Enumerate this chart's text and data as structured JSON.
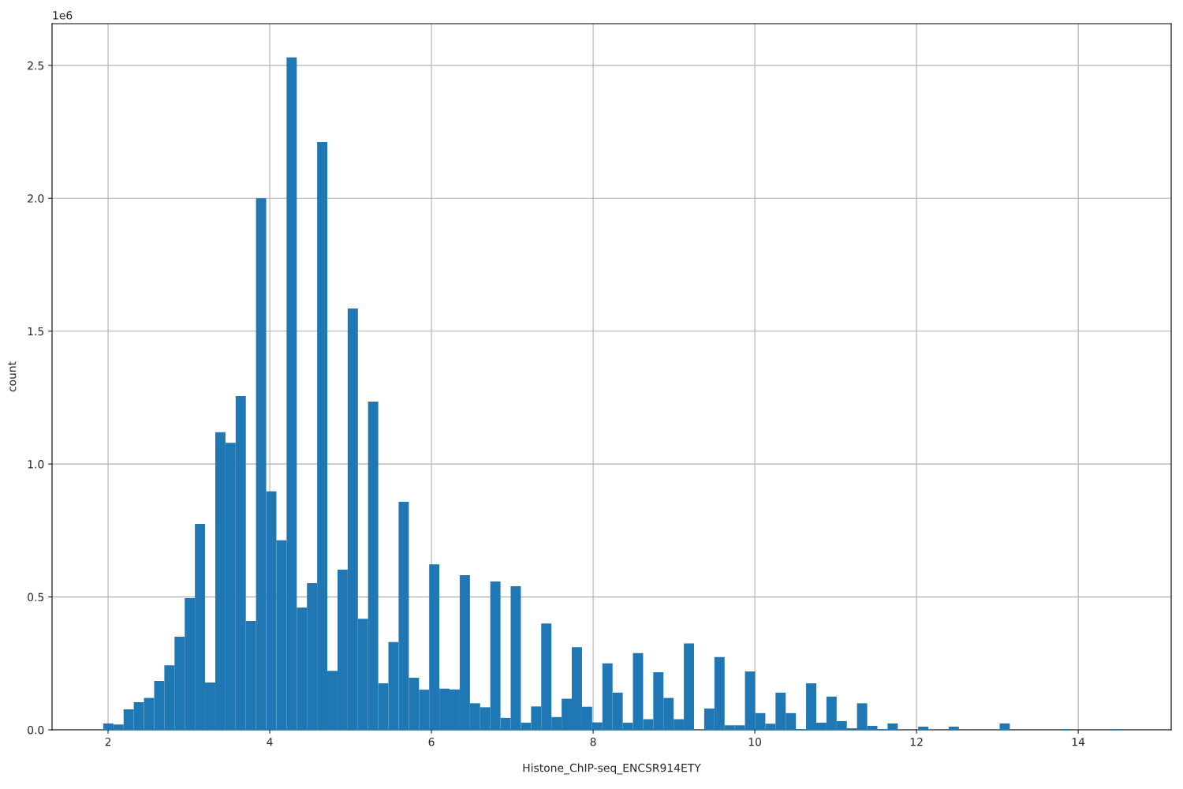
{
  "chart_data": {
    "type": "histogram",
    "xlabel": "Histone_ChIP-seq_ENCSR914ETY",
    "ylabel": "count",
    "color": "#1f77b4",
    "bins": [
      1.94,
      2.066,
      2.192,
      2.318,
      2.444,
      2.57,
      2.696,
      2.822,
      2.948,
      3.074,
      3.2,
      3.326,
      3.452,
      3.578,
      3.704,
      3.83,
      3.956,
      4.082,
      4.208,
      4.334,
      4.46,
      4.586,
      4.712,
      4.838,
      4.964,
      5.09,
      5.216,
      5.342,
      5.468,
      5.594,
      5.72,
      5.846,
      5.972,
      6.098,
      6.224,
      6.35,
      6.476,
      6.602,
      6.728,
      6.854,
      6.98,
      7.106,
      7.232,
      7.358,
      7.484,
      7.61,
      7.736,
      7.862,
      7.988,
      8.114,
      8.24,
      8.366,
      8.492,
      8.618,
      8.744,
      8.87,
      8.996,
      9.122,
      9.248,
      9.374,
      9.5,
      9.626,
      9.752,
      9.878,
      10.004,
      10.13,
      10.256,
      10.382,
      10.508,
      10.634,
      10.76,
      10.886,
      11.012,
      11.138,
      11.264,
      11.39,
      11.516,
      11.642,
      11.768,
      11.894,
      12.02,
      12.146,
      12.272,
      12.398,
      12.524,
      12.65,
      12.776,
      12.902,
      13.028,
      13.154,
      13.28,
      13.406,
      13.532,
      13.658,
      13.784,
      13.91,
      14.036,
      14.162,
      14.288,
      14.414,
      14.54
    ],
    "values": [
      0.024,
      0.02,
      0.077,
      0.104,
      0.12,
      0.184,
      0.243,
      0.35,
      0.496,
      0.775,
      0.178,
      1.12,
      1.08,
      1.256,
      0.41,
      2.0,
      0.897,
      0.713,
      2.53,
      0.46,
      0.552,
      2.212,
      0.222,
      0.603,
      1.585,
      0.418,
      1.235,
      0.175,
      0.33,
      0.858,
      0.196,
      0.151,
      0.623,
      0.155,
      0.152,
      0.582,
      0.1,
      0.085,
      0.558,
      0.045,
      0.54,
      0.027,
      0.088,
      0.4,
      0.048,
      0.117,
      0.311,
      0.087,
      0.028,
      0.25,
      0.14,
      0.027,
      0.289,
      0.04,
      0.217,
      0.12,
      0.04,
      0.325,
      0,
      0.08,
      0.274,
      0.017,
      0.017,
      0.22,
      0.063,
      0.023,
      0.14,
      0.063,
      0.003,
      0.175,
      0.027,
      0.125,
      0.033,
      0.006,
      0.1,
      0.015,
      0.003,
      0.024,
      0,
      0,
      0.012,
      0,
      0,
      0.012,
      0,
      0,
      0,
      0,
      0.024,
      0,
      0,
      0,
      0,
      0,
      0.003,
      0,
      0,
      0,
      0,
      0.003
    ],
    "xlim": [
      1.307,
      15.15
    ],
    "xticks": [
      2,
      4,
      6,
      8,
      10,
      12,
      14
    ],
    "ylim": [
      0,
      2.657
    ],
    "yticks": [
      {
        "value": 0,
        "label": "0.0"
      },
      0.5,
      {
        "value": 1,
        "label": "1.0"
      },
      1.5,
      {
        "value": 2,
        "label": "2.0"
      },
      2.5
    ],
    "annotations": [
      "1e6"
    ],
    "grid": true
  }
}
